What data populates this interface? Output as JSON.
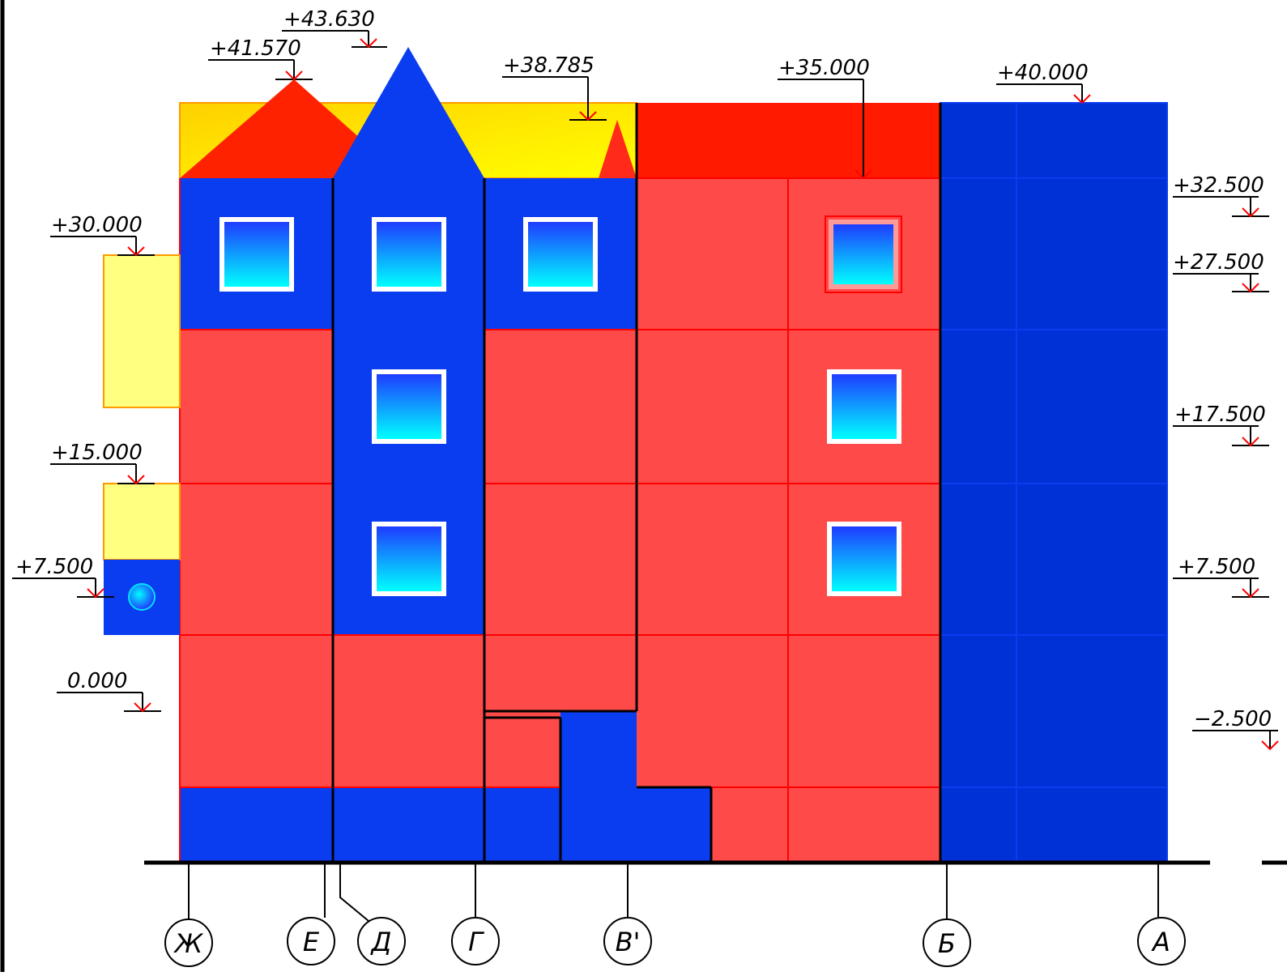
{
  "colors": {
    "red": "#ff4a4a",
    "red_grid": "#ff0000",
    "blue": "#0a3cf0",
    "blue_dark": "#0031d6",
    "yellow": "#ffff80",
    "gold": "#ffd800",
    "roof_red": "#ff2200",
    "window_frame": "#ffffff",
    "window_glass_top": "#1f3cff",
    "window_glass_bottom": "#00ffff",
    "marker": "#ff0000",
    "line": "#000000"
  },
  "elevations": {
    "e43630": "+43.630",
    "e41570": "+41.570",
    "e38785": "+38.785",
    "e35000": "+35.000",
    "e40000": "+40.000",
    "e32500": "+32.500",
    "e30000": "+30.000",
    "e27500": "+27.500",
    "e17500": "+17.500",
    "e15000": "+15.000",
    "e7500_left": "+7.500",
    "e7500_right": "+7.500",
    "e0000": "0.000",
    "eminus2500": "−2.500"
  },
  "axes": {
    "zh": "Ж",
    "e": "Е",
    "d": "Д",
    "g": "Г",
    "v": "В'",
    "b": "Б",
    "a": "А"
  }
}
